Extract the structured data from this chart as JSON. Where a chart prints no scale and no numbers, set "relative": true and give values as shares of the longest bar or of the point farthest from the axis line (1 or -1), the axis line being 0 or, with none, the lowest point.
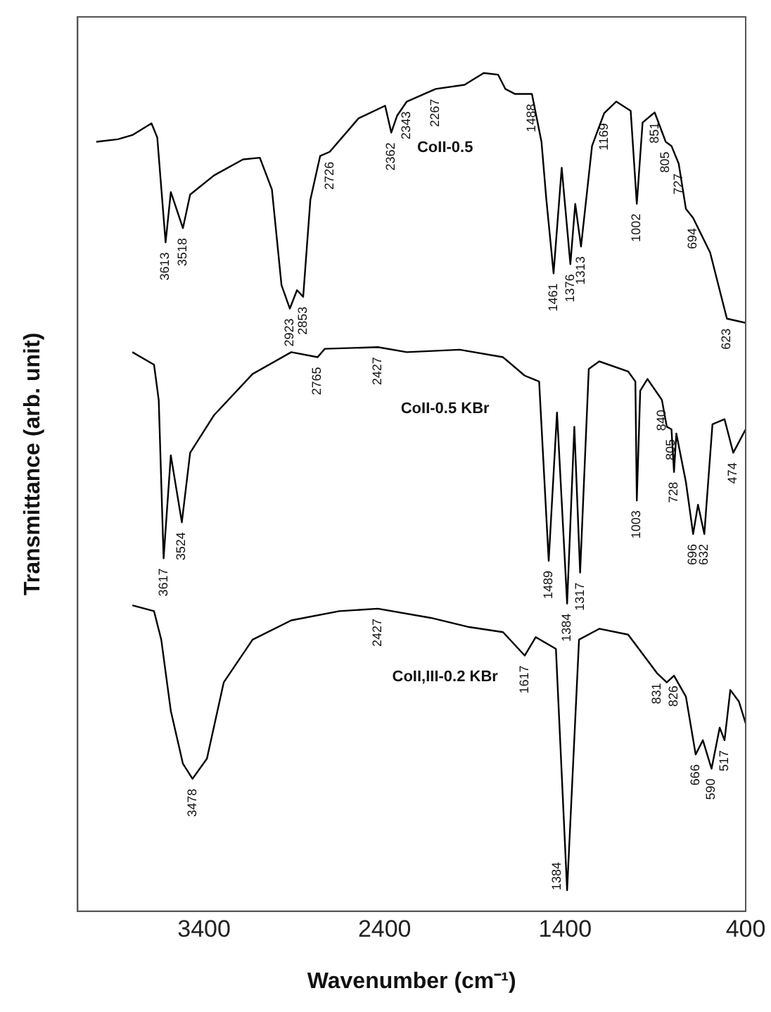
{
  "chart_data": {
    "type": "line",
    "relative": true,
    "xlabel": "Wavenumber (cm⁻¹)",
    "ylabel": "Transmittance (arb. unit)",
    "xlim": [
      4100,
      400
    ],
    "xticks": [
      3400,
      2400,
      1400,
      400
    ],
    "grid": false,
    "legend": false,
    "marker": "none",
    "line_style": "solid",
    "series": [
      {
        "name": "CoII-0.5",
        "color": "#000000",
        "x": [
          3997,
          3877,
          3797,
          3691,
          3659,
          3613,
          3584,
          3517,
          3477,
          3344,
          3184,
          3091,
          3024,
          2971,
          2925,
          2885,
          2851,
          2811,
          2757,
          2704,
          2544,
          2397,
          2363,
          2331,
          2277,
          2117,
          1957,
          1851,
          1771,
          1731,
          1677,
          1584,
          1531,
          1504,
          1464,
          1419,
          1371,
          1344,
          1312,
          1251,
          1184,
          1117,
          1037,
          1003,
          971,
          904,
          843,
          811,
          771,
          731,
          691,
          597,
          504,
          400
        ],
        "values": [
          0.918,
          0.921,
          0.926,
          0.94,
          0.923,
          0.798,
          0.858,
          0.815,
          0.855,
          0.878,
          0.897,
          0.899,
          0.861,
          0.747,
          0.719,
          0.741,
          0.733,
          0.849,
          0.901,
          0.906,
          0.946,
          0.961,
          0.929,
          0.949,
          0.966,
          0.981,
          0.986,
          1,
          0.998,
          0.981,
          0.975,
          0.975,
          0.918,
          0.849,
          0.761,
          0.887,
          0.772,
          0.844,
          0.793,
          0.913,
          0.952,
          0.966,
          0.955,
          0.844,
          0.941,
          0.953,
          0.918,
          0.913,
          0.892,
          0.838,
          0.827,
          0.786,
          0.707,
          0.702
        ]
      },
      {
        "name": "CoII-0.5 KBr",
        "color": "#000000",
        "x": [
          3797,
          3677,
          3651,
          3624,
          3584,
          3523,
          3477,
          3344,
          3131,
          2917,
          2771,
          2731,
          2437,
          2277,
          1984,
          1744,
          1624,
          1544,
          1491,
          1445,
          1389,
          1349,
          1317,
          1269,
          1211,
          1051,
          1011,
          1003,
          984,
          944,
          864,
          837,
          811,
          797,
          784,
          731,
          691,
          664,
          629,
          584,
          517,
          469,
          400
        ],
        "values": [
          0.667,
          0.652,
          0.61,
          0.421,
          0.544,
          0.464,
          0.547,
          0.592,
          0.641,
          0.667,
          0.661,
          0.671,
          0.673,
          0.667,
          0.67,
          0.661,
          0.639,
          0.632,
          0.418,
          0.595,
          0.367,
          0.578,
          0.404,
          0.647,
          0.656,
          0.644,
          0.632,
          0.49,
          0.621,
          0.635,
          0.61,
          0.578,
          0.575,
          0.524,
          0.57,
          0.512,
          0.45,
          0.485,
          0.45,
          0.581,
          0.587,
          0.547,
          0.575
        ]
      },
      {
        "name": "CoII,III-0.2 KBr",
        "color": "#000000",
        "x": [
          3797,
          3677,
          3637,
          3584,
          3517,
          3464,
          3384,
          3291,
          3131,
          2917,
          2651,
          2437,
          2144,
          1931,
          1744,
          1624,
          1563,
          1451,
          1389,
          1323,
          1211,
          1051,
          891,
          837,
          797,
          731,
          677,
          637,
          589,
          544,
          517,
          485,
          437,
          400
        ],
        "values": [
          0.365,
          0.358,
          0.324,
          0.239,
          0.176,
          0.158,
          0.182,
          0.273,
          0.324,
          0.347,
          0.358,
          0.361,
          0.35,
          0.339,
          0.333,
          0.305,
          0.327,
          0.313,
          0.025,
          0.324,
          0.337,
          0.33,
          0.284,
          0.273,
          0.281,
          0.256,
          0.187,
          0.204,
          0.17,
          0.219,
          0.204,
          0.264,
          0.25,
          0.224
        ]
      }
    ],
    "annotations": [
      {
        "text": "3613",
        "x": 3613,
        "y": 0.798
      },
      {
        "text": "3518",
        "x": 3517,
        "y": 0.815
      },
      {
        "text": "2923",
        "x": 2925,
        "y": 0.719
      },
      {
        "text": "2853",
        "x": 2851,
        "y": 0.733
      },
      {
        "text": "2726",
        "x": 2704,
        "y": 0.906
      },
      {
        "text": "2362",
        "x": 2363,
        "y": 0.929
      },
      {
        "text": "2343",
        "x": 2277,
        "y": 0.966
      },
      {
        "text": "2267",
        "x": 2117,
        "y": 0.981
      },
      {
        "text": "1488",
        "x": 1584,
        "y": 0.975
      },
      {
        "text": "1461",
        "x": 1464,
        "y": 0.761
      },
      {
        "text": "1376",
        "x": 1371,
        "y": 0.772
      },
      {
        "text": "1313",
        "x": 1312,
        "y": 0.793
      },
      {
        "text": "1169",
        "x": 1184,
        "y": 0.952
      },
      {
        "text": "1002",
        "x": 1003,
        "y": 0.844
      },
      {
        "text": "851",
        "x": 904,
        "y": 0.953
      },
      {
        "text": "805",
        "x": 843,
        "y": 0.918
      },
      {
        "text": "727",
        "x": 771,
        "y": 0.892
      },
      {
        "text": "694",
        "x": 691,
        "y": 0.827
      },
      {
        "text": "623",
        "x": 504,
        "y": 0.707
      },
      {
        "text": "3617",
        "x": 3624,
        "y": 0.421
      },
      {
        "text": "3524",
        "x": 3523,
        "y": 0.464
      },
      {
        "text": "2765",
        "x": 2771,
        "y": 0.661
      },
      {
        "text": "2427",
        "x": 2437,
        "y": 0.673
      },
      {
        "text": "1489",
        "x": 1491,
        "y": 0.418
      },
      {
        "text": "1384",
        "x": 1389,
        "y": 0.367
      },
      {
        "text": "1317",
        "x": 1317,
        "y": 0.404
      },
      {
        "text": "1003",
        "x": 1003,
        "y": 0.49
      },
      {
        "text": "840",
        "x": 864,
        "y": 0.61
      },
      {
        "text": "805",
        "x": 811,
        "y": 0.575
      },
      {
        "text": "728",
        "x": 797,
        "y": 0.524
      },
      {
        "text": "696",
        "x": 691,
        "y": 0.45
      },
      {
        "text": "632",
        "x": 629,
        "y": 0.45
      },
      {
        "text": "474",
        "x": 469,
        "y": 0.547
      },
      {
        "text": "3478",
        "x": 3464,
        "y": 0.158
      },
      {
        "text": "2427",
        "x": 2437,
        "y": 0.361
      },
      {
        "text": "1617",
        "x": 1624,
        "y": 0.305
      },
      {
        "text": "1384",
        "x": 1389,
        "y": 0.025
      },
      {
        "text": "831",
        "x": 891,
        "y": 0.284
      },
      {
        "text": "826",
        "x": 797,
        "y": 0.281
      },
      {
        "text": "666",
        "x": 677,
        "y": 0.187
      },
      {
        "text": "590",
        "x": 589,
        "y": 0.17
      },
      {
        "text": "517",
        "x": 517,
        "y": 0.204
      }
    ]
  }
}
